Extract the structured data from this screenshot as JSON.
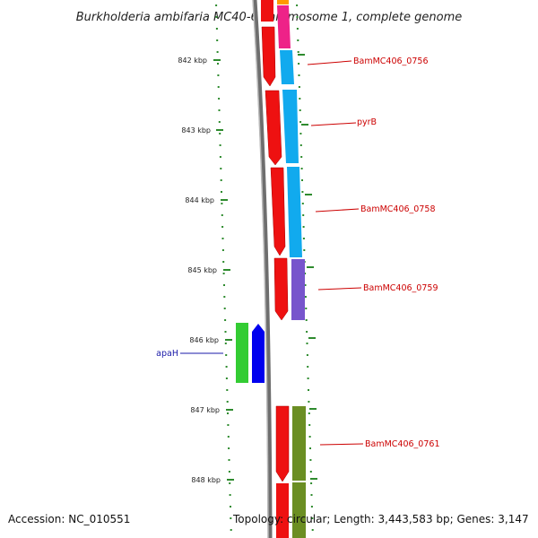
{
  "title": "Burkholderia ambifaria MC40-6 chromosome 1, complete genome",
  "footer": {
    "accession": "Accession: NC_010551",
    "topology": "Topology: circular; Length: 3,443,583 bp; Genes: 3,147"
  },
  "colors": {
    "backbone": "#8a8a8a",
    "ticks": "#2e8b2e",
    "forward_label": "#cc0000",
    "reverse_label": "#1a1aa8"
  },
  "scale": {
    "unit": "kbp",
    "major_ticks": [
      {
        "label": "842 kbp"
      },
      {
        "label": "843 kbp"
      },
      {
        "label": "844 kbp"
      },
      {
        "label": "845 kbp"
      },
      {
        "label": "846 kbp"
      },
      {
        "label": "847 kbp"
      },
      {
        "label": "848 kbp"
      }
    ]
  },
  "labels": {
    "BamMC406_0756": "BamMC406_0756",
    "pyrB": "pyrB",
    "BamMC406_0758": "BamMC406_0758",
    "BamMC406_0759": "BamMC406_0759",
    "apaH": "apaH",
    "BamMC406_0761": "BamMC406_0761"
  }
}
